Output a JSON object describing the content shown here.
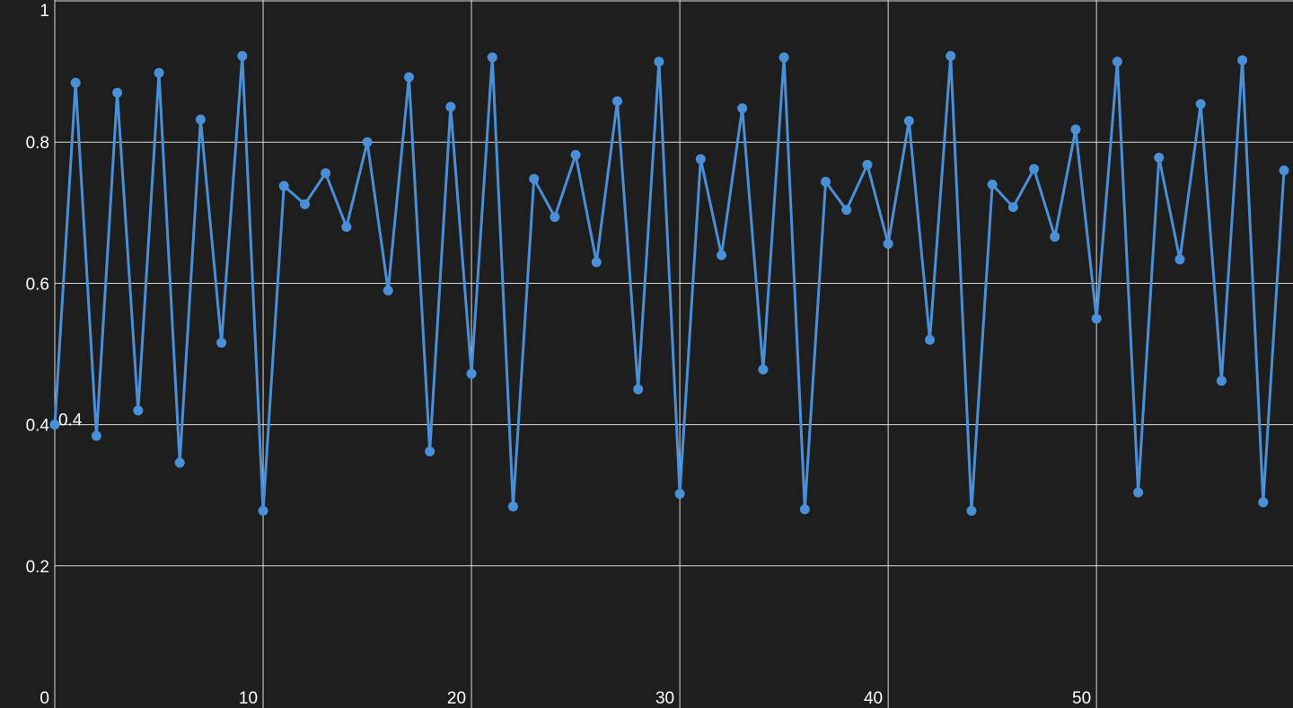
{
  "chart_data": {
    "type": "line",
    "grid": true,
    "xlim": [
      0,
      59
    ],
    "ylim": [
      0,
      1
    ],
    "x_ticks": [
      0,
      10,
      20,
      30,
      40,
      50
    ],
    "x_tick_labels": [
      "0",
      "10",
      "20",
      "30",
      "40",
      "50"
    ],
    "y_ticks": [
      0.2,
      0.4,
      0.6,
      0.8,
      1
    ],
    "y_tick_labels": [
      "0.2",
      "0.4",
      "0.6",
      "0.8",
      "1"
    ],
    "series": [
      {
        "color": "#4a90d9",
        "x": [
          0,
          1,
          2,
          3,
          4,
          5,
          6,
          7,
          8,
          9,
          10,
          11,
          12,
          13,
          14,
          15,
          16,
          17,
          18,
          19,
          20,
          21,
          22,
          23,
          24,
          25,
          26,
          27,
          28,
          29,
          30,
          31,
          32,
          33,
          34,
          35,
          36,
          37,
          38,
          39,
          40,
          41,
          42,
          43,
          44,
          45,
          46,
          47,
          48,
          49,
          50,
          51,
          52,
          53,
          54,
          55,
          56,
          57,
          58,
          59
        ],
        "values": [
          0.4,
          0.884,
          0.384,
          0.87,
          0.42,
          0.898,
          0.346,
          0.832,
          0.516,
          0.922,
          0.278,
          0.738,
          0.712,
          0.756,
          0.68,
          0.8,
          0.59,
          0.892,
          0.362,
          0.85,
          0.472,
          0.92,
          0.284,
          0.748,
          0.694,
          0.782,
          0.63,
          0.858,
          0.45,
          0.914,
          0.302,
          0.776,
          0.64,
          0.848,
          0.478,
          0.92,
          0.28,
          0.744,
          0.704,
          0.768,
          0.656,
          0.83,
          0.52,
          0.922,
          0.278,
          0.74,
          0.708,
          0.762,
          0.666,
          0.818,
          0.55,
          0.914,
          0.304,
          0.778,
          0.634,
          0.854,
          0.462,
          0.916,
          0.29,
          0.76
        ]
      }
    ],
    "annotations": [
      {
        "x": 0,
        "y": 0.4,
        "text": "0.4"
      }
    ]
  }
}
